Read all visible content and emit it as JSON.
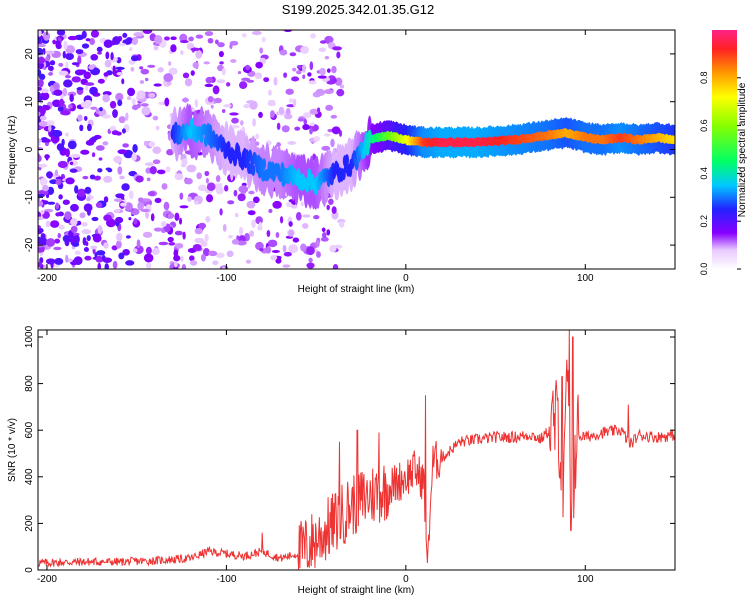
{
  "title": "S199.2025.342.01.35.G12",
  "chart_data": [
    {
      "type": "heatmap",
      "xlabel": "Height of straight line (km)",
      "ylabel": "Frequency (Hz)",
      "xlim": [
        -205,
        150
      ],
      "ylim": [
        -25,
        25
      ],
      "x_ticks": [
        -200,
        -100,
        0,
        100
      ],
      "y_ticks": [
        -20,
        -10,
        0,
        10,
        20
      ],
      "colorbar": {
        "label": "Normalized spectral amplitude",
        "range": [
          0,
          1
        ],
        "ticks": [
          "0.0",
          "0.2",
          "0.4",
          "0.6",
          "0.8"
        ]
      },
      "ridge": {
        "x": [
          -130,
          -120,
          -110,
          -100,
          -90,
          -80,
          -70,
          -60,
          -50,
          -40,
          -30,
          -20,
          -10,
          0,
          10,
          20,
          40,
          60,
          80,
          90,
          100,
          110,
          120,
          130,
          140,
          150
        ],
        "freq": [
          3,
          4,
          3,
          0,
          -2,
          -4,
          -5,
          -6,
          -7,
          -5,
          -3,
          2,
          3,
          2,
          1.5,
          1.5,
          1.5,
          2,
          3,
          3.5,
          2.5,
          2,
          2.5,
          2,
          2.5,
          2
        ],
        "amplitude": [
          0.25,
          0.35,
          0.3,
          0.25,
          0.25,
          0.3,
          0.3,
          0.35,
          0.35,
          0.25,
          0.25,
          0.4,
          0.55,
          0.7,
          0.9,
          0.95,
          0.95,
          0.9,
          0.85,
          0.8,
          0.85,
          0.85,
          0.9,
          0.85,
          0.8,
          0.75
        ]
      }
    },
    {
      "type": "line",
      "xlabel": "Height of straight line (km)",
      "ylabel": "SNR (10 * v/v)",
      "xlim": [
        -205,
        150
      ],
      "ylim": [
        0,
        1030
      ],
      "x_ticks": [
        -200,
        -100,
        0,
        100
      ],
      "y_ticks": [
        0,
        200,
        400,
        600,
        800,
        1000
      ],
      "series": [
        {
          "name": "SNR",
          "color": "#ee3333",
          "x": [
            -205,
            -180,
            -160,
            -140,
            -120,
            -110,
            -100,
            -90,
            -80,
            -70,
            -60,
            -50,
            -40,
            -30,
            -20,
            -10,
            0,
            5,
            10,
            12,
            15,
            20,
            30,
            40,
            50,
            60,
            70,
            75,
            80,
            85,
            88,
            90,
            92,
            95,
            100,
            110,
            120,
            125,
            130,
            140,
            150
          ],
          "values": [
            30,
            35,
            35,
            40,
            50,
            80,
            70,
            60,
            80,
            50,
            70,
            130,
            200,
            280,
            320,
            350,
            400,
            430,
            380,
            50,
            460,
            480,
            550,
            560,
            570,
            570,
            580,
            560,
            600,
            650,
            300,
            900,
            180,
            580,
            570,
            590,
            600,
            540,
            580,
            570,
            580
          ],
          "spikes": [
            {
              "x": -80,
              "value": 160
            },
            {
              "x": -37,
              "value": 550
            },
            {
              "x": -27,
              "value": 600
            },
            {
              "x": -15,
              "value": 590
            },
            {
              "x": 11,
              "value": 750
            },
            {
              "x": 12,
              "value": 30
            },
            {
              "x": 87,
              "value": 830
            },
            {
              "x": 91,
              "value": 1030
            },
            {
              "x": 93,
              "value": 1000
            },
            {
              "x": 92,
              "value": 170
            },
            {
              "x": 124,
              "value": 710
            }
          ]
        }
      ]
    }
  ]
}
